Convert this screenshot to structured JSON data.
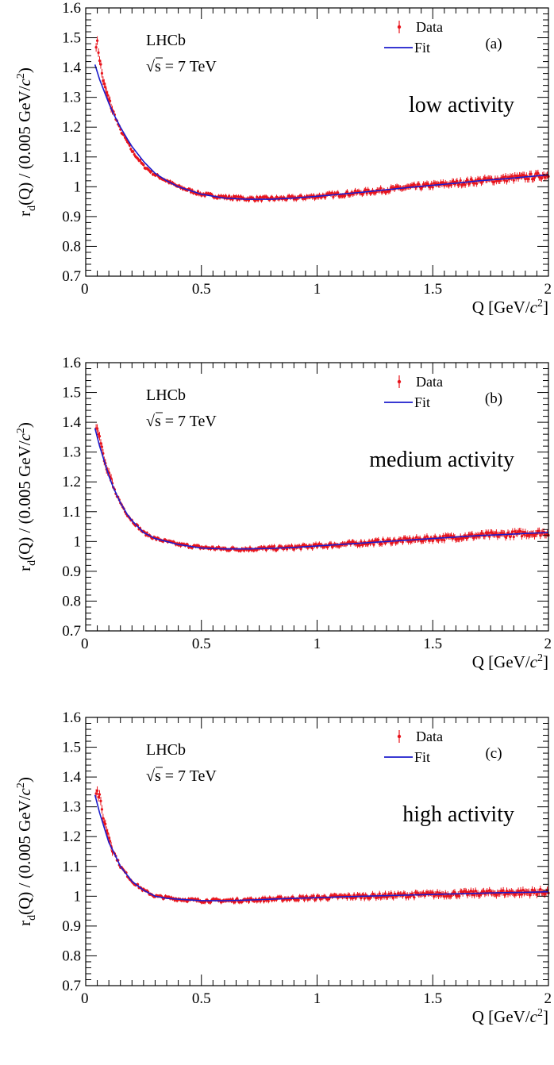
{
  "chart_data": [
    {
      "type": "scatter",
      "panel": "(a)",
      "experiment": "LHCb",
      "energy_label": "√s = 7 TeV",
      "activity": "low activity",
      "xlabel": "Q [GeV/c²]",
      "ylabel": "r_d(Q) / (0.005 GeV/c²)",
      "xlim": [
        0,
        2
      ],
      "ylim": [
        0.7,
        1.6
      ],
      "x_ticks": [
        "0",
        "0.5",
        "1",
        "1.5",
        "2"
      ],
      "y_ticks": [
        "0.7",
        "0.8",
        "0.9",
        "1",
        "1.1",
        "1.2",
        "1.3",
        "1.4",
        "1.5",
        "1.6"
      ],
      "legend_position": "top-right",
      "series": [
        {
          "name": "Data",
          "color": "#e8141c",
          "marker": "dot-with-error-bar",
          "x": [
            0.05,
            0.06,
            0.07,
            0.08,
            0.1,
            0.12,
            0.15,
            0.18,
            0.2,
            0.25,
            0.3,
            0.35,
            0.4,
            0.5,
            0.6,
            0.7,
            0.8,
            0.9,
            1.0,
            1.1,
            1.2,
            1.3,
            1.4,
            1.5,
            1.6,
            1.7,
            1.8,
            1.9,
            2.0
          ],
          "values": [
            1.48,
            1.43,
            1.38,
            1.34,
            1.29,
            1.25,
            1.19,
            1.15,
            1.12,
            1.07,
            1.04,
            1.02,
            1.0,
            0.975,
            0.965,
            0.96,
            0.96,
            0.962,
            0.968,
            0.975,
            0.982,
            0.99,
            0.998,
            1.005,
            1.012,
            1.02,
            1.026,
            1.032,
            1.04
          ]
        },
        {
          "name": "Fit",
          "color": "#1c1ccc",
          "line": true,
          "x": [
            0.04,
            0.06,
            0.08,
            0.1,
            0.12,
            0.15,
            0.18,
            0.2,
            0.25,
            0.3,
            0.35,
            0.4,
            0.5,
            0.6,
            0.7,
            0.8,
            0.9,
            1.0,
            1.1,
            1.2,
            1.3,
            1.4,
            1.5,
            1.6,
            1.7,
            1.8,
            1.9,
            2.0
          ],
          "values": [
            1.41,
            1.36,
            1.32,
            1.28,
            1.245,
            1.2,
            1.16,
            1.135,
            1.085,
            1.045,
            1.02,
            1.0,
            0.975,
            0.962,
            0.958,
            0.958,
            0.962,
            0.968,
            0.975,
            0.982,
            0.99,
            0.998,
            1.005,
            1.012,
            1.02,
            1.026,
            1.033,
            1.04
          ]
        }
      ]
    },
    {
      "type": "scatter",
      "panel": "(b)",
      "experiment": "LHCb",
      "energy_label": "√s = 7 TeV",
      "activity": "medium activity",
      "xlabel": "Q [GeV/c²]",
      "ylabel": "r_d(Q) / (0.005 GeV/c²)",
      "xlim": [
        0,
        2
      ],
      "ylim": [
        0.7,
        1.6
      ],
      "x_ticks": [
        "0",
        "0.5",
        "1",
        "1.5",
        "2"
      ],
      "y_ticks": [
        "0.7",
        "0.8",
        "0.9",
        "1",
        "1.1",
        "1.2",
        "1.3",
        "1.4",
        "1.5",
        "1.6"
      ],
      "legend_position": "top-right",
      "series": [
        {
          "name": "Data",
          "color": "#e8141c",
          "marker": "dot-with-error-bar",
          "x": [
            0.05,
            0.06,
            0.07,
            0.08,
            0.1,
            0.12,
            0.15,
            0.18,
            0.2,
            0.25,
            0.3,
            0.35,
            0.4,
            0.5,
            0.6,
            0.7,
            0.8,
            0.9,
            1.0,
            1.1,
            1.2,
            1.3,
            1.4,
            1.5,
            1.6,
            1.7,
            1.8,
            1.9,
            2.0
          ],
          "values": [
            1.39,
            1.35,
            1.31,
            1.27,
            1.22,
            1.18,
            1.13,
            1.09,
            1.07,
            1.03,
            1.01,
            1.0,
            0.99,
            0.98,
            0.975,
            0.975,
            0.977,
            0.98,
            0.985,
            0.99,
            0.995,
            1.0,
            1.005,
            1.01,
            1.015,
            1.02,
            1.023,
            1.027,
            1.03
          ]
        },
        {
          "name": "Fit",
          "color": "#1c1ccc",
          "line": true,
          "x": [
            0.04,
            0.06,
            0.08,
            0.1,
            0.12,
            0.15,
            0.18,
            0.2,
            0.25,
            0.3,
            0.35,
            0.4,
            0.5,
            0.6,
            0.7,
            0.8,
            0.9,
            1.0,
            1.1,
            1.2,
            1.3,
            1.4,
            1.5,
            1.6,
            1.7,
            1.8,
            1.9,
            2.0
          ],
          "values": [
            1.38,
            1.32,
            1.27,
            1.22,
            1.18,
            1.13,
            1.09,
            1.07,
            1.03,
            1.01,
            1.0,
            0.99,
            0.978,
            0.975,
            0.975,
            0.977,
            0.98,
            0.985,
            0.99,
            0.995,
            1.0,
            1.005,
            1.01,
            1.015,
            1.02,
            1.023,
            1.027,
            1.03
          ]
        }
      ]
    },
    {
      "type": "scatter",
      "panel": "(c)",
      "experiment": "LHCb",
      "energy_label": "√s = 7 TeV",
      "activity": "high activity",
      "xlabel": "Q [GeV/c²]",
      "ylabel": "r_d(Q) / (0.005 GeV/c²)",
      "xlim": [
        0,
        2
      ],
      "ylim": [
        0.7,
        1.6
      ],
      "x_ticks": [
        "0",
        "0.5",
        "1",
        "1.5",
        "2"
      ],
      "y_ticks": [
        "0.7",
        "0.8",
        "0.9",
        "1",
        "1.1",
        "1.2",
        "1.3",
        "1.4",
        "1.5",
        "1.6"
      ],
      "legend_position": "top-right",
      "series": [
        {
          "name": "Data",
          "color": "#e8141c",
          "marker": "dot-with-error-bar",
          "x": [
            0.05,
            0.06,
            0.07,
            0.08,
            0.1,
            0.12,
            0.15,
            0.18,
            0.2,
            0.25,
            0.3,
            0.35,
            0.4,
            0.5,
            0.6,
            0.7,
            0.8,
            0.9,
            1.0,
            1.1,
            1.2,
            1.3,
            1.4,
            1.5,
            1.6,
            1.7,
            1.8,
            1.9,
            2.0
          ],
          "values": [
            1.35,
            1.33,
            1.29,
            1.25,
            1.2,
            1.15,
            1.1,
            1.07,
            1.05,
            1.02,
            1.0,
            0.995,
            0.99,
            0.985,
            0.985,
            0.987,
            0.99,
            0.993,
            0.995,
            0.998,
            1.0,
            1.002,
            1.004,
            1.006,
            1.008,
            1.01,
            1.012,
            1.013,
            1.015
          ]
        },
        {
          "name": "Fit",
          "color": "#1c1ccc",
          "line": true,
          "x": [
            0.04,
            0.06,
            0.08,
            0.1,
            0.12,
            0.15,
            0.18,
            0.2,
            0.25,
            0.3,
            0.35,
            0.4,
            0.5,
            0.6,
            0.7,
            0.8,
            0.9,
            1.0,
            1.1,
            1.2,
            1.3,
            1.4,
            1.5,
            1.6,
            1.7,
            1.8,
            1.9,
            2.0
          ],
          "values": [
            1.34,
            1.28,
            1.23,
            1.18,
            1.15,
            1.1,
            1.07,
            1.05,
            1.02,
            1.0,
            0.993,
            0.99,
            0.985,
            0.985,
            0.987,
            0.99,
            0.993,
            0.995,
            0.998,
            1.0,
            1.002,
            1.004,
            1.006,
            1.008,
            1.01,
            1.012,
            1.013,
            1.015
          ]
        }
      ]
    }
  ]
}
